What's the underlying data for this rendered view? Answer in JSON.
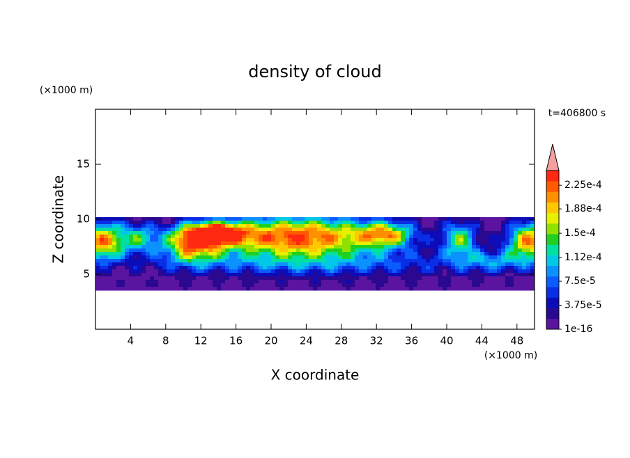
{
  "chart_data": {
    "type": "contour",
    "title": "density of cloud",
    "x_label": "X coordinate",
    "y_label": "Z coordinate",
    "x_unit": "(×1000 m)",
    "y_unit": "(×1000 m)",
    "time_label": "t=406800 s",
    "xlim": [
      0,
      50
    ],
    "ylim": [
      0,
      20
    ],
    "xticks": [
      4,
      8,
      12,
      16,
      20,
      24,
      28,
      32,
      36,
      40,
      44,
      48
    ],
    "yticks": [
      5,
      10,
      15
    ],
    "colorbar": {
      "clim": [
        1e-16,
        0.000248
      ],
      "ticks": [
        {
          "value": 1e-16,
          "label": "1e-16"
        },
        {
          "value": 3.75e-05,
          "label": "3.75e-5"
        },
        {
          "value": 7.5e-05,
          "label": "7.5e-5"
        },
        {
          "value": 0.000112,
          "label": "1.12e-4"
        },
        {
          "value": 0.00015,
          "label": "1.5e-4"
        },
        {
          "value": 0.000188,
          "label": "1.88e-4"
        },
        {
          "value": 0.000225,
          "label": "2.25e-4"
        }
      ],
      "colors": [
        "#5a14a0",
        "#2a0890",
        "#0c0cb8",
        "#0a2ee6",
        "#0a5cff",
        "#0c92ff",
        "#00c8e6",
        "#00e0a0",
        "#20d020",
        "#90e000",
        "#e8f000",
        "#ffc800",
        "#ff9000",
        "#ff5a00",
        "#ff2810"
      ],
      "extend_color": "#f4a0a0"
    }
  }
}
